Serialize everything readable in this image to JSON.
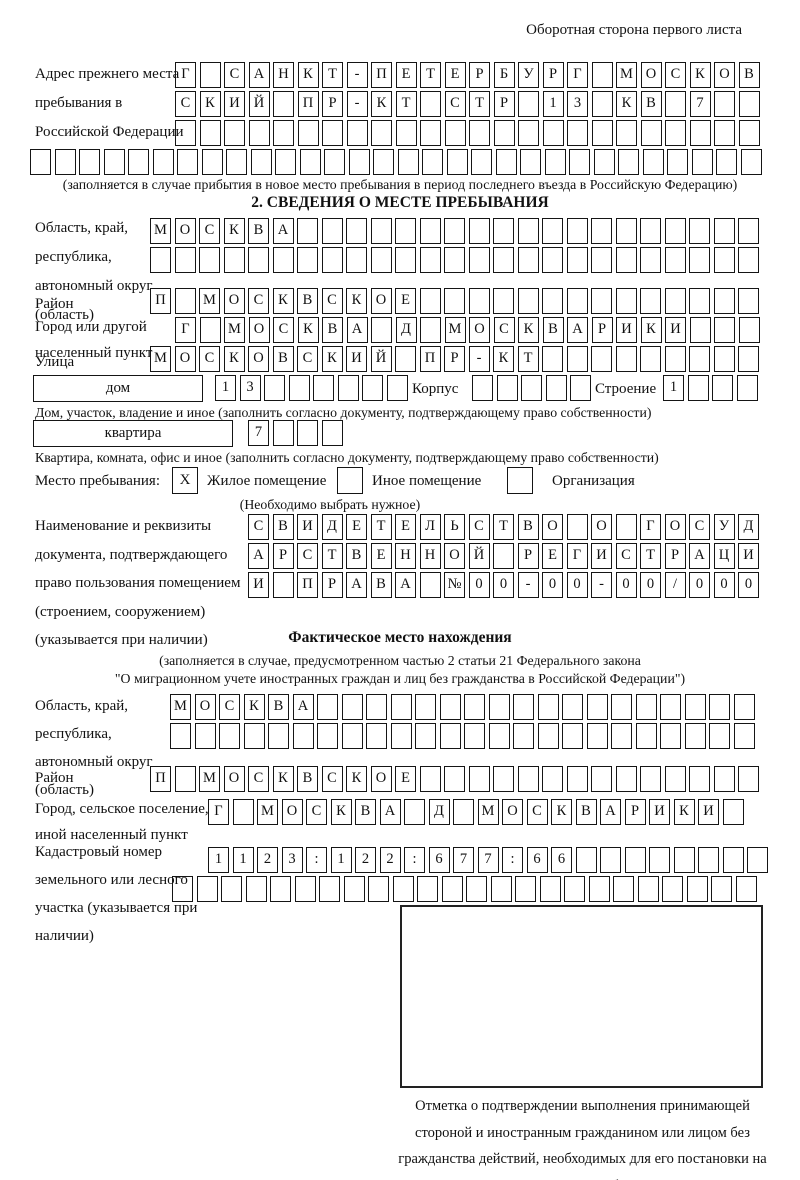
{
  "header": {
    "corner_note": "Оборотная сторона первого листа"
  },
  "prev_address": {
    "label": "Адрес прежнего места пребывания в Российской Федерации",
    "note": "(заполняется в случае прибытия в новое место пребывания в период последнего въезда в Российскую Федерацию)",
    "rows": [
      {
        "len": 24,
        "text": "Г САНКТ-ПЕТЕРБУРГ МОСКОВ"
      },
      {
        "len": 24,
        "text": "СКИЙ ПР-КТ СТР 13 КВ 7"
      },
      {
        "len": 24,
        "text": ""
      },
      {
        "len": 30,
        "text": ""
      }
    ]
  },
  "section2": {
    "title": "2. СВЕДЕНИЯ О МЕСТЕ ПРЕБЫВАНИЯ",
    "oblast": {
      "label": "Область, край, республика, автономный округ (область)",
      "rows": [
        {
          "len": 25,
          "text": "МОСКВА"
        },
        {
          "len": 25,
          "text": ""
        }
      ]
    },
    "raion": {
      "label": "Район",
      "row": {
        "len": 25,
        "text": "П МОСКВСКОЕ"
      }
    },
    "gorod": {
      "label": "Город или другой населенный пункт",
      "row": {
        "len": 24,
        "text": "Г МОСКВА Д МОСКВАРИКИ"
      }
    },
    "ulitsa": {
      "label": "Улица",
      "row": {
        "len": 25,
        "text": "МОСКОВСКИЙ ПР-КТ"
      }
    },
    "dom": {
      "label": "дом",
      "digits": {
        "len": 8,
        "text": "13"
      },
      "korpus_label": "Корпус",
      "korpus": {
        "len": 5,
        "text": ""
      },
      "stroenie_label": "Строение",
      "stroenie": {
        "len": 4,
        "text": "1"
      },
      "note": "Дом, участок, владение и иное (заполнить согласно документу, подтверждающему право собственности)"
    },
    "kvartira": {
      "label": "квартира",
      "digits": {
        "len": 4,
        "text": "7"
      },
      "note": "Квартира, комната, офис и иное (заполнить согласно документу, подтверждающему право собственности)"
    },
    "mesto": {
      "label": "Место пребывания:",
      "options": [
        {
          "label": "Жилое помещение",
          "mark": "X"
        },
        {
          "label": "Иное помещение",
          "mark": ""
        },
        {
          "label": "Организация",
          "mark": ""
        }
      ],
      "note": "(Необходимо выбрать нужное)"
    },
    "doc": {
      "label": "Наименование и реквизиты документа, подтверждающего право пользования помещением (строением, сооружением) (указывается при наличии)",
      "rows": [
        {
          "len": 21,
          "text": "СВИДЕТЕЛЬСТВО О ГОСУД"
        },
        {
          "len": 21,
          "text": "АРСТВЕННОЙ РЕГИСТРАЦИ"
        },
        {
          "len": 21,
          "text": "И ПРАВА №00-00-00/000"
        }
      ]
    }
  },
  "factual": {
    "title": "Фактическое место нахождения",
    "note1": "(заполняется в случае, предусмотренном частью 2 статьи 21 Федерального закона",
    "note2": "\"О миграционном учете иностранных граждан и лиц без гражданства в Российской Федерации\")",
    "oblast": {
      "label": "Область, край, республика, автономный округ (область)",
      "rows": [
        {
          "len": 24,
          "text": "МОСКВА"
        },
        {
          "len": 24,
          "text": ""
        }
      ]
    },
    "raion": {
      "label": "Район",
      "row": {
        "len": 25,
        "text": "П МОСКВСКОЕ"
      }
    },
    "gorod": {
      "label": "Город, сельское поселение, иной населенный пункт",
      "row": {
        "len": 22,
        "text": "Г МОСКВА Д МОСКВАРИКИ"
      }
    },
    "kadastr": {
      "label": "Кадастровый номер земельного или лесного участка (указывается при наличии)",
      "rows": [
        {
          "len": 23,
          "text": "1123:122:677:66"
        },
        {
          "len": 24,
          "text": ""
        }
      ]
    },
    "stamp_note": "Отметка о подтверждении выполнения принимающей стороной и иностранным гражданином или лицом без гражданства действий, необходимых для его постановки на учет по месту пребывания"
  }
}
